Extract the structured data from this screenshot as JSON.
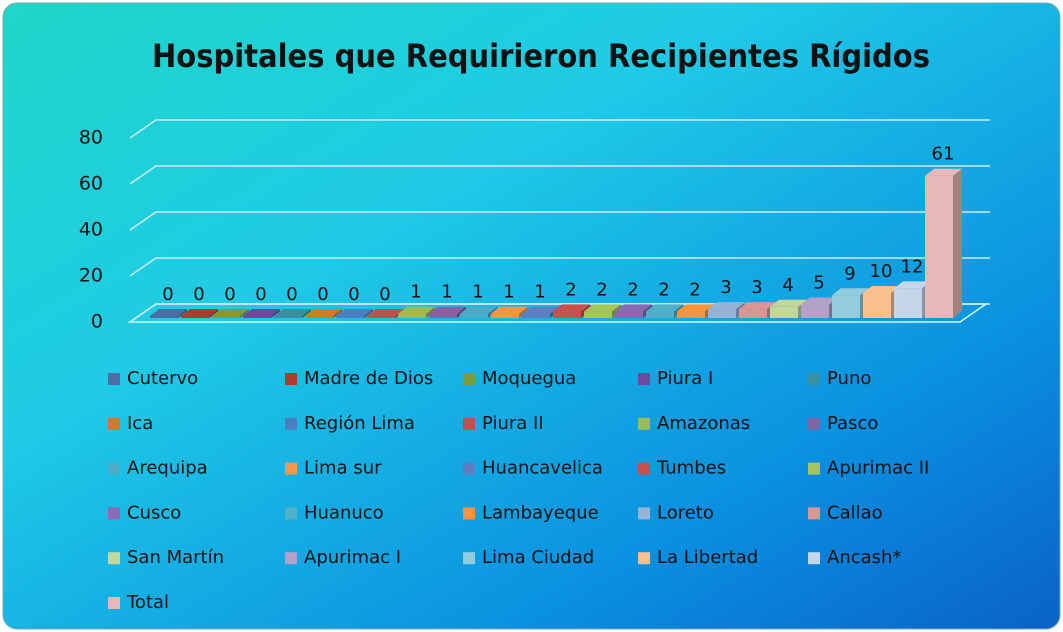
{
  "chart_data": {
    "type": "bar3d",
    "title": "Hospitales que Requirieron Recipientes Rígidos",
    "categories": [
      null
    ],
    "ylim": [
      0,
      80
    ],
    "yticks": [
      0,
      20,
      40,
      60,
      80
    ],
    "grid": true,
    "series": [
      {
        "name": "Cutervo",
        "color": "#4a6fa5",
        "values": [
          0
        ]
      },
      {
        "name": "Madre de Dios",
        "color": "#b03a2e",
        "values": [
          0
        ]
      },
      {
        "name": "Moquegua",
        "color": "#7d9a3c",
        "values": [
          0
        ]
      },
      {
        "name": "Piura I",
        "color": "#6b4c9a",
        "values": [
          0
        ]
      },
      {
        "name": "Puno",
        "color": "#3a8fa0",
        "values": [
          0
        ]
      },
      {
        "name": "Ica",
        "color": "#d07a2a",
        "values": [
          0
        ]
      },
      {
        "name": "Región Lima",
        "color": "#4d7ec0",
        "values": [
          0
        ]
      },
      {
        "name": "Piura II",
        "color": "#c0504d",
        "values": [
          0
        ]
      },
      {
        "name": "Amazonas",
        "color": "#9bbb59",
        "values": [
          1
        ]
      },
      {
        "name": "Pasco",
        "color": "#8064a2",
        "values": [
          1
        ]
      },
      {
        "name": "Arequipa",
        "color": "#4bacc6",
        "values": [
          1
        ]
      },
      {
        "name": "Lima sur",
        "color": "#f79646",
        "values": [
          1
        ]
      },
      {
        "name": "Huancavelica",
        "color": "#5b7fc0",
        "values": [
          1
        ]
      },
      {
        "name": "Tumbes",
        "color": "#c9504d",
        "values": [
          2
        ]
      },
      {
        "name": "Apurimac II",
        "color": "#a3c55a",
        "values": [
          2
        ]
      },
      {
        "name": "Cusco",
        "color": "#8a6ab0",
        "values": [
          2
        ]
      },
      {
        "name": "Huanuco",
        "color": "#4fb0c8",
        "values": [
          2
        ]
      },
      {
        "name": "Lambayeque",
        "color": "#f8953c",
        "values": [
          2
        ]
      },
      {
        "name": "Loreto",
        "color": "#95b3d7",
        "values": [
          3
        ]
      },
      {
        "name": "Callao",
        "color": "#d99694",
        "values": [
          3
        ]
      },
      {
        "name": "San Martín",
        "color": "#c3d69b",
        "values": [
          4
        ]
      },
      {
        "name": "Apurimac I",
        "color": "#b2a2c7",
        "values": [
          5
        ]
      },
      {
        "name": "Lima Ciudad",
        "color": "#93cddd",
        "values": [
          9
        ]
      },
      {
        "name": "La Libertad",
        "color": "#fac090",
        "values": [
          10
        ]
      },
      {
        "name": "Ancash*",
        "color": "#c5d5ea",
        "values": [
          12
        ]
      },
      {
        "name": "Total",
        "color": "#e6b9b8",
        "values": [
          61
        ]
      }
    ]
  }
}
